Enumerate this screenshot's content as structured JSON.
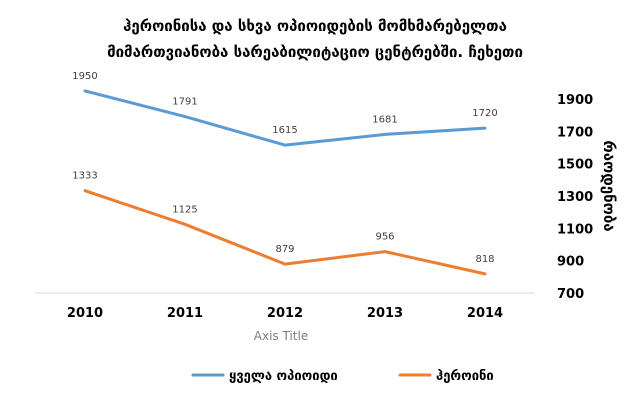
{
  "chart_data": {
    "type": "line",
    "title_lines": [
      "ჰეროინისა და სხვა ოპიოიდების მომხმარებელთა",
      "მიმართვიანობა სარეაბილიტაციო ცენტრებში. ჩეხეთი"
    ],
    "xlabel": "Axis Title",
    "ylabel": "რაოდენობა",
    "categories": [
      "2010",
      "2011",
      "2012",
      "2013",
      "2014"
    ],
    "y_ticks": [
      "700",
      "900",
      "1100",
      "1300",
      "1500",
      "1700",
      "1900"
    ],
    "ylim": [
      700,
      1900
    ],
    "y_axis_side": "right",
    "grid": false,
    "legend_position": "bottom",
    "series": [
      {
        "name": "ყველა ოპიოიდი",
        "color": "#5B9BD5",
        "values": [
          1950,
          1791,
          1615,
          1681,
          1720
        ]
      },
      {
        "name": "ჰეროინი",
        "color": "#ED7D31",
        "values": [
          1333,
          1125,
          879,
          956,
          818
        ]
      }
    ]
  }
}
